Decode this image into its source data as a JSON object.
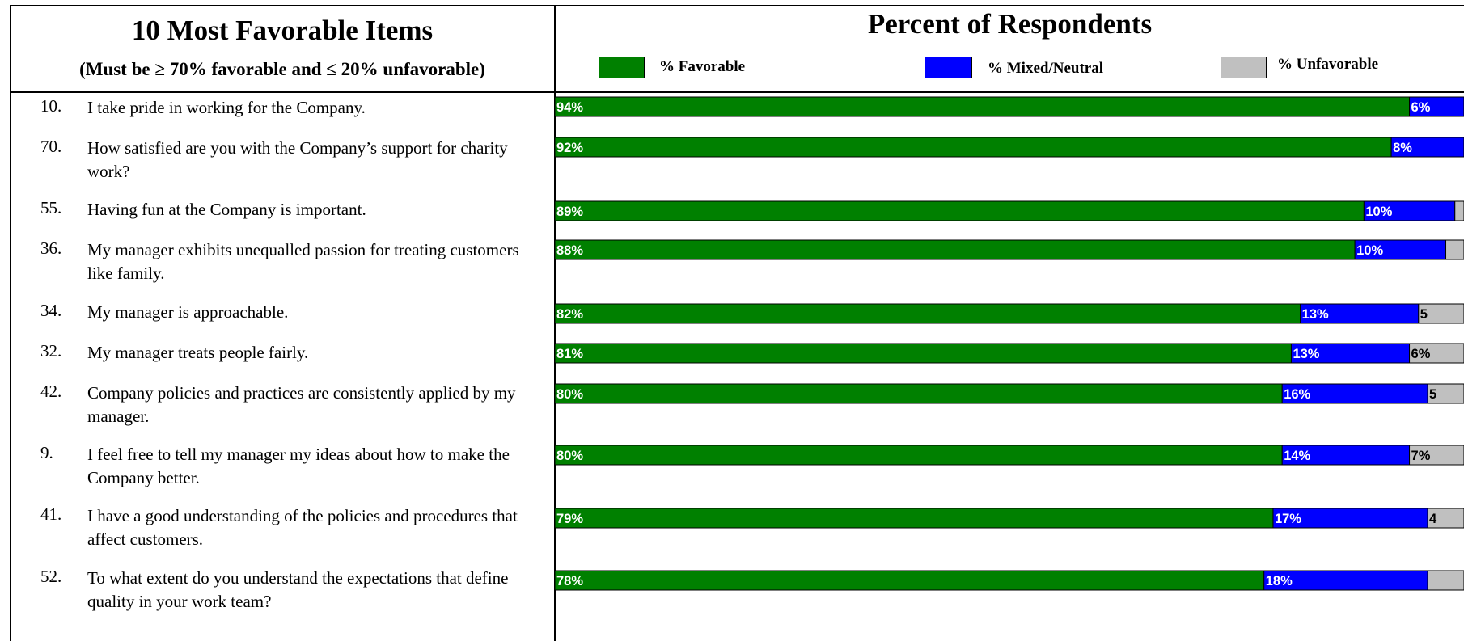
{
  "left_header": {
    "title": "10 Most Favorable Items",
    "subtitle": "(Must be ≥ 70% favorable and ≤ 20% unfavorable)"
  },
  "right_header": {
    "title": "Percent of Respondents"
  },
  "legend": [
    {
      "label": "% Favorable",
      "color": "#008000"
    },
    {
      "label": "% Mixed/Neutral",
      "color": "#0000FF"
    },
    {
      "label": "% Unfavorable",
      "color": "#C0C0C0"
    }
  ],
  "items": [
    {
      "number": "10.",
      "text": "I take pride in working for the Company."
    },
    {
      "number": "70.",
      "text": "How satisfied are you with the Company’s support for charity work?"
    },
    {
      "number": "55.",
      "text": "Having fun at the Company is important."
    },
    {
      "number": "36.",
      "text": "My manager exhibits unequalled passion for treating customers like family."
    },
    {
      "number": "34.",
      "text": "My manager is approachable."
    },
    {
      "number": "32.",
      "text": "My manager treats people fairly."
    },
    {
      "number": "42.",
      "text": "Company policies and practices are consistently applied by my manager."
    },
    {
      "number": "9.",
      "text": "I feel free to tell my manager my ideas about how to make the Company better."
    },
    {
      "number": "41.",
      "text": "I have a good understanding of the policies and procedures that affect customers."
    },
    {
      "number": "52.",
      "text": "To what extent do you understand the expectations that define quality in your work team?"
    }
  ],
  "chart_data": {
    "type": "bar",
    "orientation": "horizontal",
    "stacked": true,
    "title": "Percent of Respondents",
    "xlim": [
      0,
      100
    ],
    "legend_position": "top",
    "categories": [
      "10.",
      "70.",
      "55.",
      "36.",
      "34.",
      "32.",
      "42.",
      "9.",
      "41.",
      "52."
    ],
    "series": [
      {
        "name": "% Favorable",
        "color": "#008000",
        "values": [
          94,
          92,
          89,
          88,
          82,
          81,
          80,
          80,
          79,
          78
        ],
        "labels": [
          "94%",
          "92%",
          "89%",
          "88%",
          "82%",
          "81%",
          "80%",
          "80%",
          "79%",
          "78%"
        ]
      },
      {
        "name": "% Mixed/Neutral",
        "color": "#0000FF",
        "values": [
          6,
          8,
          10,
          10,
          13,
          13,
          16,
          14,
          17,
          18
        ],
        "labels": [
          "6%",
          "8%",
          "10%",
          "10%",
          "13%",
          "13%",
          "16%",
          "14%",
          "17%",
          "18%"
        ]
      },
      {
        "name": "% Unfavorable",
        "color": "#C0C0C0",
        "values": [
          0,
          0,
          1,
          2,
          5,
          6,
          5,
          7,
          4,
          3
        ],
        "labels": [
          "",
          "",
          "",
          "",
          "5",
          "6%",
          "5",
          "7%",
          "4",
          ""
        ]
      }
    ]
  }
}
